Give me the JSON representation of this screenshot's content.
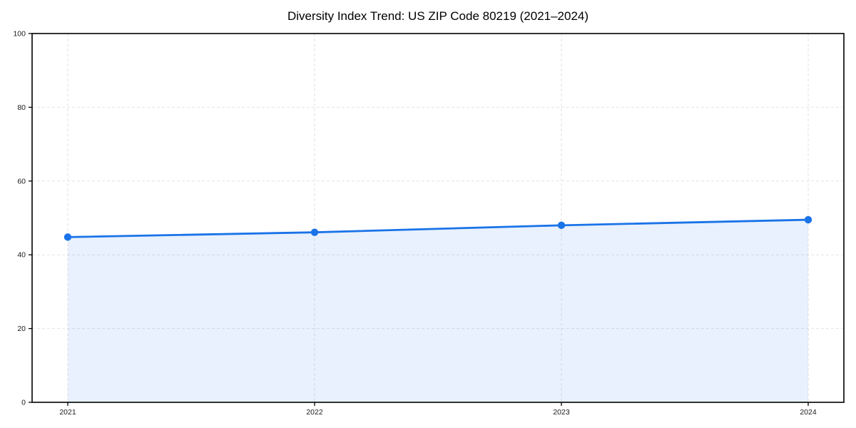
{
  "chart_data": {
    "type": "area",
    "title": "Diversity Index Trend: US ZIP Code 80219 (2021–2024)",
    "categories": [
      "2021",
      "2022",
      "2023",
      "2024"
    ],
    "series": [
      {
        "name": "Diversity Index",
        "values": [
          44.8,
          46.1,
          48.0,
          49.5
        ]
      }
    ],
    "xlabel": "",
    "ylabel": "",
    "ylim": [
      0,
      100
    ],
    "yticks": [
      0,
      20,
      40,
      60,
      80,
      100
    ],
    "grid": "dashed-both-axes",
    "legend": "none",
    "colors": {
      "line": "#1a73e8",
      "marker": "#1a73e8",
      "area_fill": "#1a73e8",
      "area_fill_opacity": 0.1,
      "gridline": "#e2e2e2",
      "spine": "#000000",
      "tick_label": "#1a1a1a",
      "title": "#000000",
      "background": "#ffffff"
    }
  }
}
